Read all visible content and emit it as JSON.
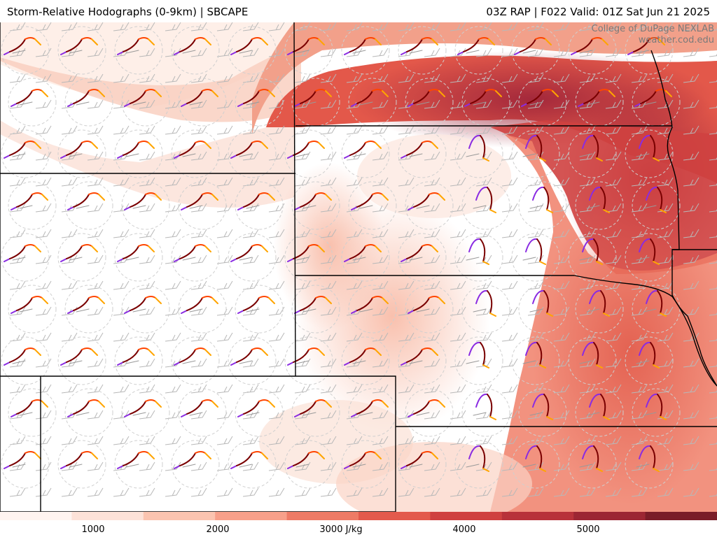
{
  "header": {
    "title": "Storm-Relative Hodographs (0-9km) | SBCAPE",
    "run_info": "03Z RAP | F022 Valid: 01Z Sat Jun 21 2025"
  },
  "watermark": {
    "line1": "College of DuPage NEXLAB",
    "line2": "weather.cod.edu"
  },
  "colorbar": {
    "labels": [
      "1000",
      "2000",
      "3000 J/kg",
      "4000",
      "5000"
    ],
    "colors": [
      "#fff4f0",
      "#fde2d8",
      "#fbc4b0",
      "#f7a08a",
      "#ee7b66",
      "#e35a4c",
      "#cf4140",
      "#b8323a",
      "#9c2633",
      "#7a1c28"
    ]
  },
  "colors": {
    "border": "#000000",
    "barb": "#b8b8b8",
    "hodo_low": "#7a0000",
    "hodo_mid": "#ff4500",
    "hodo_high": "#ffa500",
    "hodo_upper": "#8a2be2"
  }
}
